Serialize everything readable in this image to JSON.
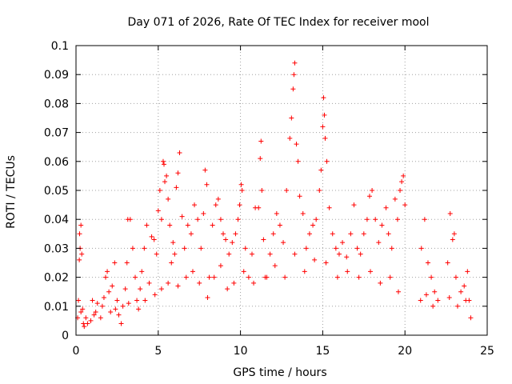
{
  "chart_data": {
    "type": "scatter",
    "title": "Day 071 of 2026, Rate Of TEC Index for receiver mool",
    "xlabel": "GPS time / hours",
    "ylabel": "ROTI / TECUs",
    "xlim": [
      0,
      25
    ],
    "ylim": [
      0,
      0.1
    ],
    "xticks": [
      0,
      5,
      10,
      15,
      20,
      25
    ],
    "xtick_labels": [
      "0",
      "5",
      "10",
      "15",
      "20",
      "25"
    ],
    "yticks": [
      0,
      0.01,
      0.02,
      0.03,
      0.04,
      0.05,
      0.06,
      0.07,
      0.08,
      0.09,
      0.1
    ],
    "ytick_labels": [
      "0",
      "0.01",
      "0.02",
      "0.03",
      "0.04",
      "0.05",
      "0.06",
      "0.07",
      "0.08",
      "0.09",
      "0.1"
    ],
    "grid": true,
    "marker": "plus",
    "color": "#ff0000",
    "series": [
      {
        "points": [
          [
            0.1,
            0.006
          ],
          [
            0.15,
            0.012
          ],
          [
            0.2,
            0.026
          ],
          [
            0.22,
            0.035
          ],
          [
            0.25,
            0.03
          ],
          [
            0.3,
            0.038
          ],
          [
            0.35,
            0.028
          ],
          [
            0.4,
            0.009
          ],
          [
            0.45,
            0.004
          ],
          [
            0.5,
            0.003
          ],
          [
            0.7,
            0.004
          ],
          [
            0.9,
            0.005
          ],
          [
            1.0,
            0.012
          ],
          [
            1.1,
            0.007
          ],
          [
            1.3,
            0.011
          ],
          [
            1.5,
            0.006
          ],
          [
            1.7,
            0.013
          ],
          [
            1.8,
            0.02
          ],
          [
            1.9,
            0.022
          ],
          [
            2.0,
            0.015
          ],
          [
            2.1,
            0.008
          ],
          [
            2.2,
            0.017
          ],
          [
            2.35,
            0.025
          ],
          [
            2.5,
            0.012
          ],
          [
            2.6,
            0.007
          ],
          [
            2.75,
            0.004
          ],
          [
            2.85,
            0.01
          ],
          [
            3.0,
            0.016
          ],
          [
            3.1,
            0.025
          ],
          [
            3.15,
            0.04
          ],
          [
            3.3,
            0.04
          ],
          [
            3.45,
            0.03
          ],
          [
            3.6,
            0.02
          ],
          [
            3.7,
            0.012
          ],
          [
            3.9,
            0.016
          ],
          [
            4.0,
            0.022
          ],
          [
            4.15,
            0.03
          ],
          [
            4.3,
            0.038
          ],
          [
            4.45,
            0.018
          ],
          [
            4.6,
            0.034
          ],
          [
            4.75,
            0.033
          ],
          [
            4.9,
            0.028
          ],
          [
            5.0,
            0.043
          ],
          [
            5.1,
            0.05
          ],
          [
            5.2,
            0.04
          ],
          [
            5.3,
            0.06
          ],
          [
            5.35,
            0.059
          ],
          [
            5.4,
            0.053
          ],
          [
            5.5,
            0.055
          ],
          [
            5.6,
            0.047
          ],
          [
            5.7,
            0.038
          ],
          [
            5.8,
            0.025
          ],
          [
            5.9,
            0.032
          ],
          [
            6.0,
            0.028
          ],
          [
            6.1,
            0.051
          ],
          [
            6.2,
            0.056
          ],
          [
            6.3,
            0.063
          ],
          [
            6.45,
            0.041
          ],
          [
            6.6,
            0.03
          ],
          [
            6.8,
            0.038
          ],
          [
            7.0,
            0.035
          ],
          [
            7.2,
            0.045
          ],
          [
            7.4,
            0.04
          ],
          [
            7.6,
            0.03
          ],
          [
            7.75,
            0.042
          ],
          [
            7.85,
            0.057
          ],
          [
            7.95,
            0.052
          ],
          [
            8.1,
            0.02
          ],
          [
            8.3,
            0.038
          ],
          [
            8.5,
            0.045
          ],
          [
            8.65,
            0.047
          ],
          [
            8.8,
            0.04
          ],
          [
            8.95,
            0.035
          ],
          [
            9.1,
            0.033
          ],
          [
            9.3,
            0.028
          ],
          [
            9.5,
            0.032
          ],
          [
            9.7,
            0.035
          ],
          [
            9.85,
            0.04
          ],
          [
            9.95,
            0.045
          ],
          [
            10.05,
            0.052
          ],
          [
            10.1,
            0.05
          ],
          [
            10.3,
            0.03
          ],
          [
            10.5,
            0.02
          ],
          [
            10.7,
            0.028
          ],
          [
            10.9,
            0.044
          ],
          [
            11.1,
            0.044
          ],
          [
            11.2,
            0.061
          ],
          [
            11.25,
            0.067
          ],
          [
            11.3,
            0.05
          ],
          [
            11.4,
            0.033
          ],
          [
            11.6,
            0.02
          ],
          [
            11.8,
            0.028
          ],
          [
            12.0,
            0.035
          ],
          [
            12.2,
            0.042
          ],
          [
            12.4,
            0.038
          ],
          [
            12.6,
            0.032
          ],
          [
            12.8,
            0.05
          ],
          [
            13.0,
            0.068
          ],
          [
            13.1,
            0.075
          ],
          [
            13.2,
            0.085
          ],
          [
            13.25,
            0.09
          ],
          [
            13.3,
            0.094
          ],
          [
            13.4,
            0.066
          ],
          [
            13.5,
            0.06
          ],
          [
            13.6,
            0.048
          ],
          [
            13.8,
            0.042
          ],
          [
            14.0,
            0.03
          ],
          [
            14.2,
            0.035
          ],
          [
            14.4,
            0.038
          ],
          [
            14.6,
            0.04
          ],
          [
            14.8,
            0.05
          ],
          [
            14.9,
            0.057
          ],
          [
            15.0,
            0.072
          ],
          [
            15.05,
            0.082
          ],
          [
            15.1,
            0.076
          ],
          [
            15.15,
            0.068
          ],
          [
            15.25,
            0.06
          ],
          [
            15.4,
            0.044
          ],
          [
            15.6,
            0.035
          ],
          [
            15.8,
            0.03
          ],
          [
            16.0,
            0.028
          ],
          [
            16.2,
            0.032
          ],
          [
            16.45,
            0.027
          ],
          [
            16.7,
            0.035
          ],
          [
            16.9,
            0.045
          ],
          [
            17.1,
            0.03
          ],
          [
            17.3,
            0.028
          ],
          [
            17.5,
            0.035
          ],
          [
            17.7,
            0.04
          ],
          [
            17.85,
            0.048
          ],
          [
            18.0,
            0.05
          ],
          [
            18.2,
            0.04
          ],
          [
            18.4,
            0.032
          ],
          [
            18.6,
            0.038
          ],
          [
            18.85,
            0.044
          ],
          [
            19.0,
            0.035
          ],
          [
            19.2,
            0.03
          ],
          [
            19.4,
            0.047
          ],
          [
            19.55,
            0.04
          ],
          [
            19.7,
            0.05
          ],
          [
            19.8,
            0.053
          ],
          [
            19.9,
            0.055
          ],
          [
            20.0,
            0.045
          ],
          [
            21.0,
            0.03
          ],
          [
            21.2,
            0.04
          ],
          [
            21.4,
            0.025
          ],
          [
            21.6,
            0.02
          ],
          [
            21.8,
            0.015
          ],
          [
            22.0,
            0.012
          ],
          [
            22.6,
            0.025
          ],
          [
            22.75,
            0.042
          ],
          [
            22.9,
            0.033
          ],
          [
            23.0,
            0.035
          ],
          [
            23.1,
            0.02
          ],
          [
            23.4,
            0.015
          ],
          [
            23.6,
            0.017
          ],
          [
            23.8,
            0.022
          ],
          [
            23.9,
            0.012
          ],
          [
            24.0,
            0.006
          ],
          [
            0.3,
            0.008
          ],
          [
            0.6,
            0.006
          ],
          [
            1.2,
            0.008
          ],
          [
            1.6,
            0.01
          ],
          [
            2.4,
            0.009
          ],
          [
            3.2,
            0.011
          ],
          [
            3.8,
            0.009
          ],
          [
            4.2,
            0.012
          ],
          [
            4.8,
            0.014
          ],
          [
            5.2,
            0.016
          ],
          [
            5.6,
            0.018
          ],
          [
            6.2,
            0.017
          ],
          [
            6.7,
            0.02
          ],
          [
            7.1,
            0.022
          ],
          [
            7.5,
            0.018
          ],
          [
            8.0,
            0.013
          ],
          [
            8.4,
            0.02
          ],
          [
            8.8,
            0.024
          ],
          [
            9.2,
            0.016
          ],
          [
            9.6,
            0.018
          ],
          [
            10.2,
            0.022
          ],
          [
            10.8,
            0.018
          ],
          [
            11.5,
            0.02
          ],
          [
            12.1,
            0.024
          ],
          [
            12.7,
            0.02
          ],
          [
            13.3,
            0.028
          ],
          [
            13.9,
            0.022
          ],
          [
            14.5,
            0.026
          ],
          [
            15.2,
            0.025
          ],
          [
            15.9,
            0.02
          ],
          [
            16.5,
            0.022
          ],
          [
            17.2,
            0.02
          ],
          [
            17.9,
            0.022
          ],
          [
            18.5,
            0.018
          ],
          [
            19.1,
            0.02
          ],
          [
            19.6,
            0.015
          ],
          [
            20.95,
            0.012
          ],
          [
            21.3,
            0.014
          ],
          [
            21.7,
            0.01
          ],
          [
            22.7,
            0.013
          ],
          [
            23.2,
            0.01
          ],
          [
            23.7,
            0.012
          ]
        ]
      }
    ]
  }
}
